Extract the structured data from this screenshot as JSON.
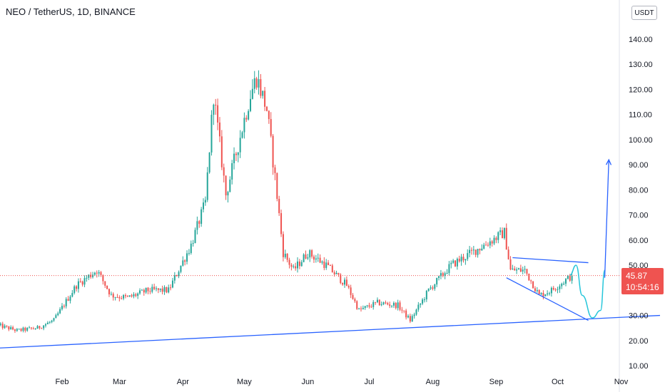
{
  "header": {
    "symbol_title": "NEO / TetherUS, 1D, BINANCE",
    "currency": "USDT"
  },
  "last_price": {
    "value": "45.87",
    "countdown": "10:54:16"
  },
  "colors": {
    "up": "#26a69a",
    "down": "#ef5350",
    "drawing": "#2962ff",
    "projection": "#26c6da",
    "axis_text": "#131722",
    "price_line": "#ef5350"
  },
  "chart_data": {
    "type": "candlestick",
    "x_tick_labels": [
      "Feb",
      "Mar",
      "Apr",
      "May",
      "Jun",
      "Jul",
      "Aug",
      "Sep",
      "Oct",
      "Nov"
    ],
    "y_tick_labels": [
      "10.00",
      "20.00",
      "30.00",
      "40.00",
      "50.00",
      "60.00",
      "70.00",
      "80.00",
      "90.00",
      "100.00",
      "110.00",
      "120.00",
      "130.00",
      "140.00"
    ],
    "ylim": [
      6,
      152
    ],
    "close_series": [
      {
        "date": "2021-01-01",
        "close": 26
      },
      {
        "date": "2021-01-10",
        "close": 24
      },
      {
        "date": "2021-01-20",
        "close": 25
      },
      {
        "date": "2021-01-28",
        "close": 28
      },
      {
        "date": "2021-02-08",
        "close": 42
      },
      {
        "date": "2021-02-18",
        "close": 48
      },
      {
        "date": "2021-02-25",
        "close": 38
      },
      {
        "date": "2021-03-05",
        "close": 37
      },
      {
        "date": "2021-03-15",
        "close": 40
      },
      {
        "date": "2021-03-25",
        "close": 40
      },
      {
        "date": "2021-04-05",
        "close": 58
      },
      {
        "date": "2021-04-12",
        "close": 75
      },
      {
        "date": "2021-04-16",
        "close": 118
      },
      {
        "date": "2021-04-22",
        "close": 78
      },
      {
        "date": "2021-04-28",
        "close": 98
      },
      {
        "date": "2021-05-04",
        "close": 118
      },
      {
        "date": "2021-05-07",
        "close": 125
      },
      {
        "date": "2021-05-12",
        "close": 112
      },
      {
        "date": "2021-05-16",
        "close": 85
      },
      {
        "date": "2021-05-20",
        "close": 55
      },
      {
        "date": "2021-05-25",
        "close": 48
      },
      {
        "date": "2021-06-01",
        "close": 55
      },
      {
        "date": "2021-06-10",
        "close": 50
      },
      {
        "date": "2021-06-20",
        "close": 42
      },
      {
        "date": "2021-06-26",
        "close": 32
      },
      {
        "date": "2021-07-05",
        "close": 35
      },
      {
        "date": "2021-07-15",
        "close": 34
      },
      {
        "date": "2021-07-21",
        "close": 28
      },
      {
        "date": "2021-07-30",
        "close": 40
      },
      {
        "date": "2021-08-10",
        "close": 50
      },
      {
        "date": "2021-08-20",
        "close": 55
      },
      {
        "date": "2021-09-05",
        "close": 63
      },
      {
        "date": "2021-09-08",
        "close": 48
      },
      {
        "date": "2021-09-15",
        "close": 48
      },
      {
        "date": "2021-09-22",
        "close": 38
      },
      {
        "date": "2021-09-28",
        "close": 40
      },
      {
        "date": "2021-10-08",
        "close": 45.87
      }
    ],
    "last_price": 45.87,
    "drawings": {
      "support_line": [
        {
          "date": "2021-01-01",
          "price": 17
        },
        {
          "date": "2021-11-20",
          "price": 30
        }
      ],
      "wedge_upper": [
        {
          "date": "2021-09-09",
          "price": 53
        },
        {
          "date": "2021-10-16",
          "price": 51
        }
      ],
      "wedge_lower": [
        {
          "date": "2021-09-06",
          "price": 45
        },
        {
          "date": "2021-10-16",
          "price": 28
        }
      ],
      "projection": [
        {
          "date": "2021-10-07",
          "price": 46
        },
        {
          "date": "2021-10-10",
          "price": 50
        },
        {
          "date": "2021-10-13",
          "price": 38
        },
        {
          "date": "2021-10-18",
          "price": 29
        },
        {
          "date": "2021-10-22",
          "price": 32
        },
        {
          "date": "2021-10-24",
          "price": 48
        }
      ],
      "target_arrow": [
        {
          "date": "2021-10-24",
          "price": 45
        },
        {
          "date": "2021-10-26",
          "price": 92
        }
      ]
    }
  }
}
